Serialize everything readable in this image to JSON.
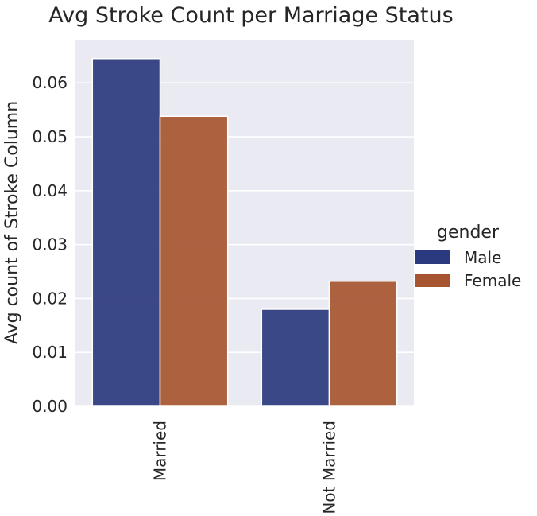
{
  "chart_data": {
    "type": "bar",
    "title": "Avg Stroke Count per Marriage Status",
    "xlabel": "",
    "ylabel": "Avg count of Stroke Column",
    "categories": [
      "Married",
      "Not Married"
    ],
    "series": [
      {
        "name": "Male",
        "values": [
          0.0645,
          0.018
        ],
        "color": "#2b3a7e"
      },
      {
        "name": "Female",
        "values": [
          0.0538,
          0.0232
        ],
        "color": "#a65530"
      }
    ],
    "ylim": [
      0,
      0.068
    ],
    "yticks": [
      "0.00",
      "0.01",
      "0.02",
      "0.03",
      "0.04",
      "0.05",
      "0.06"
    ],
    "legend": {
      "title": "gender",
      "placement": "right"
    },
    "grid": true,
    "background": "#eaeaf2"
  }
}
